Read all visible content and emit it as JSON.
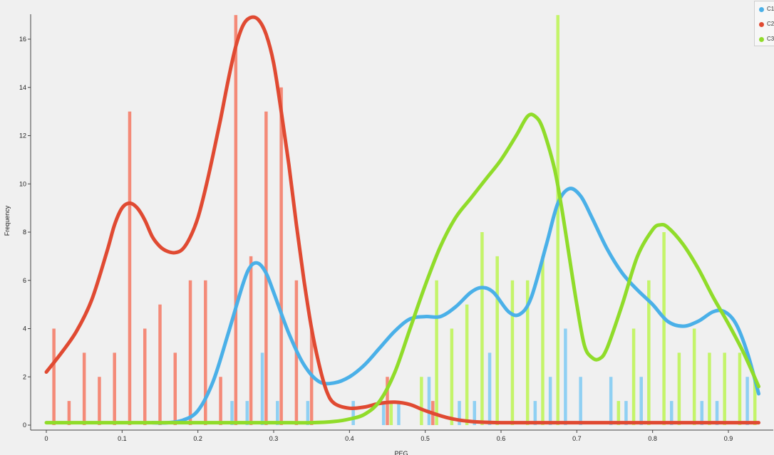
{
  "chart_data": {
    "type": "bar",
    "title": "",
    "xlabel": "PEG",
    "ylabel": "Frequency",
    "xlim": [
      -0.02,
      0.95
    ],
    "ylim": [
      0,
      17
    ],
    "x_ticks": [
      0,
      0.1,
      0.2,
      0.3,
      0.4,
      0.5,
      0.6,
      0.7,
      0.8,
      0.9
    ],
    "y_ticks": [
      0,
      2,
      4,
      6,
      8,
      10,
      12,
      14,
      16
    ],
    "grid": false,
    "legend_position": "top-right",
    "series": [
      {
        "name": "C1",
        "color": "#4ab0e8",
        "bar_color": "#8fd0f3",
        "bars": [
          {
            "x": 0.245,
            "y": 1
          },
          {
            "x": 0.265,
            "y": 1
          },
          {
            "x": 0.285,
            "y": 3
          },
          {
            "x": 0.305,
            "y": 1
          },
          {
            "x": 0.345,
            "y": 1
          },
          {
            "x": 0.405,
            "y": 1
          },
          {
            "x": 0.445,
            "y": 1
          },
          {
            "x": 0.465,
            "y": 1
          },
          {
            "x": 0.505,
            "y": 2
          },
          {
            "x": 0.545,
            "y": 1
          },
          {
            "x": 0.565,
            "y": 1
          },
          {
            "x": 0.585,
            "y": 3
          },
          {
            "x": 0.645,
            "y": 1
          },
          {
            "x": 0.665,
            "y": 2
          },
          {
            "x": 0.685,
            "y": 4
          },
          {
            "x": 0.705,
            "y": 2
          },
          {
            "x": 0.745,
            "y": 2
          },
          {
            "x": 0.765,
            "y": 1
          },
          {
            "x": 0.785,
            "y": 2
          },
          {
            "x": 0.825,
            "y": 1
          },
          {
            "x": 0.865,
            "y": 1
          },
          {
            "x": 0.885,
            "y": 1
          },
          {
            "x": 0.925,
            "y": 2
          }
        ],
        "curve": [
          [
            0.14,
            0.1
          ],
          [
            0.16,
            0.1
          ],
          [
            0.18,
            0.2
          ],
          [
            0.2,
            0.6
          ],
          [
            0.22,
            1.8
          ],
          [
            0.24,
            3.8
          ],
          [
            0.26,
            5.9
          ],
          [
            0.27,
            6.6
          ],
          [
            0.28,
            6.7
          ],
          [
            0.29,
            6.3
          ],
          [
            0.3,
            5.5
          ],
          [
            0.32,
            3.8
          ],
          [
            0.34,
            2.5
          ],
          [
            0.36,
            1.8
          ],
          [
            0.38,
            1.75
          ],
          [
            0.4,
            2.0
          ],
          [
            0.42,
            2.5
          ],
          [
            0.44,
            3.2
          ],
          [
            0.46,
            3.9
          ],
          [
            0.48,
            4.4
          ],
          [
            0.5,
            4.5
          ],
          [
            0.52,
            4.5
          ],
          [
            0.54,
            4.9
          ],
          [
            0.56,
            5.5
          ],
          [
            0.575,
            5.7
          ],
          [
            0.59,
            5.5
          ],
          [
            0.61,
            4.7
          ],
          [
            0.625,
            4.6
          ],
          [
            0.64,
            5.3
          ],
          [
            0.66,
            7.5
          ],
          [
            0.675,
            9.2
          ],
          [
            0.69,
            9.8
          ],
          [
            0.705,
            9.5
          ],
          [
            0.72,
            8.6
          ],
          [
            0.74,
            7.3
          ],
          [
            0.76,
            6.3
          ],
          [
            0.78,
            5.6
          ],
          [
            0.8,
            5.0
          ],
          [
            0.82,
            4.3
          ],
          [
            0.84,
            4.1
          ],
          [
            0.86,
            4.3
          ],
          [
            0.88,
            4.7
          ],
          [
            0.895,
            4.7
          ],
          [
            0.91,
            4.2
          ],
          [
            0.925,
            3.0
          ],
          [
            0.94,
            1.3
          ]
        ]
      },
      {
        "name": "C2",
        "color": "#e04a32",
        "bar_color": "#f48a78",
        "bars": [
          {
            "x": 0.01,
            "y": 4
          },
          {
            "x": 0.03,
            "y": 1
          },
          {
            "x": 0.05,
            "y": 3
          },
          {
            "x": 0.07,
            "y": 2
          },
          {
            "x": 0.09,
            "y": 3
          },
          {
            "x": 0.11,
            "y": 13
          },
          {
            "x": 0.13,
            "y": 4
          },
          {
            "x": 0.15,
            "y": 5
          },
          {
            "x": 0.17,
            "y": 3
          },
          {
            "x": 0.19,
            "y": 6
          },
          {
            "x": 0.21,
            "y": 6
          },
          {
            "x": 0.23,
            "y": 2
          },
          {
            "x": 0.25,
            "y": 17
          },
          {
            "x": 0.27,
            "y": 7
          },
          {
            "x": 0.29,
            "y": 13
          },
          {
            "x": 0.31,
            "y": 14
          },
          {
            "x": 0.33,
            "y": 6
          },
          {
            "x": 0.35,
            "y": 4
          },
          {
            "x": 0.45,
            "y": 2
          },
          {
            "x": 0.51,
            "y": 1
          }
        ],
        "curve": [
          [
            0.0,
            2.2
          ],
          [
            0.02,
            3.0
          ],
          [
            0.04,
            3.9
          ],
          [
            0.06,
            5.2
          ],
          [
            0.08,
            7.2
          ],
          [
            0.09,
            8.3
          ],
          [
            0.1,
            9.0
          ],
          [
            0.11,
            9.2
          ],
          [
            0.12,
            9.0
          ],
          [
            0.13,
            8.5
          ],
          [
            0.14,
            7.8
          ],
          [
            0.15,
            7.4
          ],
          [
            0.16,
            7.2
          ],
          [
            0.17,
            7.15
          ],
          [
            0.18,
            7.3
          ],
          [
            0.19,
            7.8
          ],
          [
            0.2,
            8.6
          ],
          [
            0.21,
            9.8
          ],
          [
            0.22,
            11.2
          ],
          [
            0.23,
            12.7
          ],
          [
            0.24,
            14.3
          ],
          [
            0.25,
            15.7
          ],
          [
            0.26,
            16.6
          ],
          [
            0.27,
            16.9
          ],
          [
            0.28,
            16.8
          ],
          [
            0.29,
            16.2
          ],
          [
            0.3,
            15.0
          ],
          [
            0.31,
            13.0
          ],
          [
            0.32,
            10.8
          ],
          [
            0.33,
            8.3
          ],
          [
            0.34,
            6.0
          ],
          [
            0.35,
            4.0
          ],
          [
            0.36,
            2.5
          ],
          [
            0.37,
            1.4
          ],
          [
            0.38,
            0.9
          ],
          [
            0.4,
            0.7
          ],
          [
            0.42,
            0.75
          ],
          [
            0.44,
            0.9
          ],
          [
            0.46,
            0.95
          ],
          [
            0.48,
            0.85
          ],
          [
            0.5,
            0.6
          ],
          [
            0.53,
            0.3
          ],
          [
            0.56,
            0.15
          ],
          [
            0.6,
            0.1
          ],
          [
            0.7,
            0.1
          ],
          [
            0.8,
            0.1
          ],
          [
            0.94,
            0.1
          ]
        ]
      },
      {
        "name": "C3",
        "color": "#90dc2a",
        "bar_color": "#c4f46a",
        "bars": [
          {
            "x": 0.455,
            "y": 1
          },
          {
            "x": 0.495,
            "y": 2
          },
          {
            "x": 0.515,
            "y": 6
          },
          {
            "x": 0.535,
            "y": 4
          },
          {
            "x": 0.555,
            "y": 5
          },
          {
            "x": 0.575,
            "y": 8
          },
          {
            "x": 0.595,
            "y": 7
          },
          {
            "x": 0.615,
            "y": 6
          },
          {
            "x": 0.635,
            "y": 6
          },
          {
            "x": 0.655,
            "y": 7
          },
          {
            "x": 0.675,
            "y": 17
          },
          {
            "x": 0.755,
            "y": 1
          },
          {
            "x": 0.775,
            "y": 4
          },
          {
            "x": 0.795,
            "y": 6
          },
          {
            "x": 0.815,
            "y": 8
          },
          {
            "x": 0.835,
            "y": 3
          },
          {
            "x": 0.855,
            "y": 4
          },
          {
            "x": 0.875,
            "y": 3
          },
          {
            "x": 0.895,
            "y": 3
          },
          {
            "x": 0.915,
            "y": 3
          },
          {
            "x": 0.935,
            "y": 2
          }
        ],
        "curve": [
          [
            0.0,
            0.1
          ],
          [
            0.1,
            0.1
          ],
          [
            0.2,
            0.1
          ],
          [
            0.3,
            0.1
          ],
          [
            0.35,
            0.1
          ],
          [
            0.38,
            0.15
          ],
          [
            0.4,
            0.25
          ],
          [
            0.42,
            0.45
          ],
          [
            0.44,
            1.0
          ],
          [
            0.46,
            2.2
          ],
          [
            0.48,
            4.0
          ],
          [
            0.5,
            5.8
          ],
          [
            0.52,
            7.4
          ],
          [
            0.54,
            8.6
          ],
          [
            0.56,
            9.4
          ],
          [
            0.58,
            10.2
          ],
          [
            0.6,
            11.0
          ],
          [
            0.62,
            12.0
          ],
          [
            0.635,
            12.8
          ],
          [
            0.645,
            12.8
          ],
          [
            0.655,
            12.3
          ],
          [
            0.67,
            10.7
          ],
          [
            0.68,
            9.0
          ],
          [
            0.69,
            7.0
          ],
          [
            0.7,
            5.0
          ],
          [
            0.71,
            3.3
          ],
          [
            0.72,
            2.8
          ],
          [
            0.73,
            2.75
          ],
          [
            0.74,
            3.2
          ],
          [
            0.76,
            5.0
          ],
          [
            0.78,
            7.0
          ],
          [
            0.8,
            8.1
          ],
          [
            0.81,
            8.3
          ],
          [
            0.82,
            8.2
          ],
          [
            0.84,
            7.5
          ],
          [
            0.86,
            6.5
          ],
          [
            0.88,
            5.3
          ],
          [
            0.9,
            4.2
          ],
          [
            0.92,
            3.0
          ],
          [
            0.94,
            1.6
          ]
        ]
      }
    ]
  }
}
